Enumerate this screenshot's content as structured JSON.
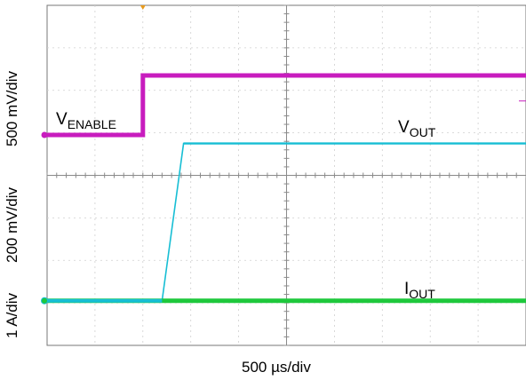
{
  "chart_data": {
    "type": "line",
    "title": "",
    "xlabel": "500 µs/div",
    "ylabels": [
      "500 mV/div",
      "200 mV/div",
      "1 A/div"
    ],
    "x_unit": "div",
    "xlim": [
      0,
      10
    ],
    "ylim": [
      -4,
      4
    ],
    "grid": true,
    "series": [
      {
        "name": "VENABLE",
        "label_main": "V",
        "label_sub": "ENABLE",
        "color": "#c81cbe",
        "x": [
          0,
          2.0,
          2.0,
          10
        ],
        "y": [
          0.95,
          0.95,
          2.35,
          2.35
        ]
      },
      {
        "name": "VOUT",
        "label_main": "V",
        "label_sub": "OUT",
        "color": "#17bed4",
        "x": [
          0,
          2.4,
          2.85,
          10
        ],
        "y": [
          -2.95,
          -2.95,
          0.75,
          0.75
        ]
      },
      {
        "name": "IOUT",
        "label_main": "I",
        "label_sub": "OUT",
        "color": "#1ec83c",
        "x": [
          0,
          2.4,
          10
        ],
        "y": [
          -2.95,
          -2.95,
          -2.95
        ]
      }
    ]
  }
}
